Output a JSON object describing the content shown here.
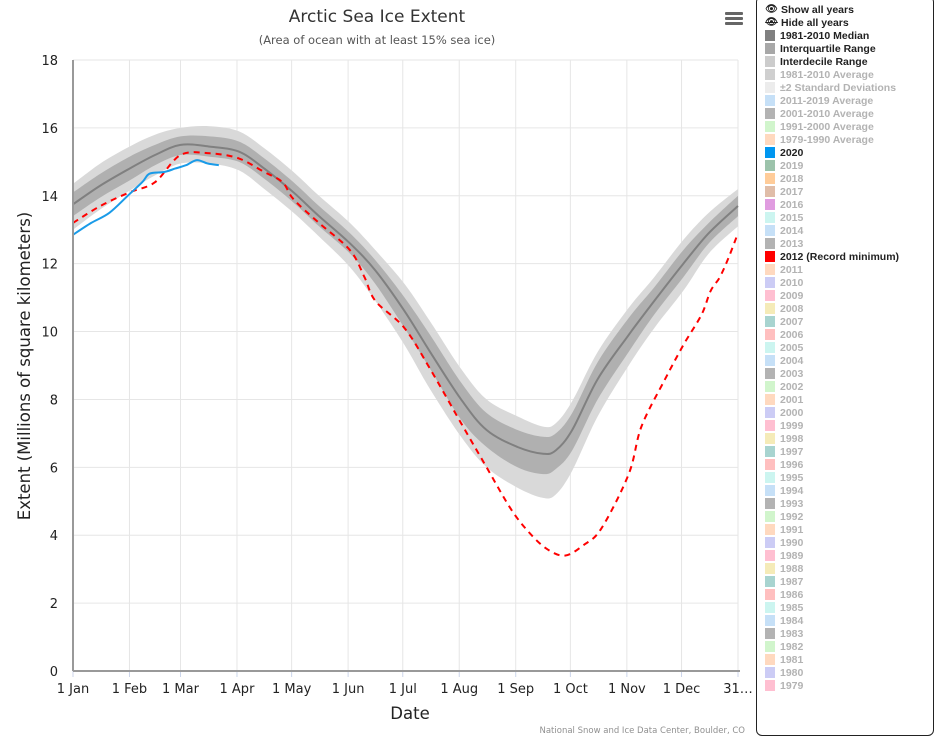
{
  "chart_data": {
    "type": "area",
    "title": "Arctic Sea Ice Extent",
    "subtitle": "(Area of ocean with at least 15% sea ice)",
    "xlabel": "Date",
    "ylabel": "Extent (Millions of square kilometers)",
    "credits": "National Snow and Ice Data Center, Boulder, CO",
    "ylim": [
      0,
      18
    ],
    "xlim_days": [
      0,
      365
    ],
    "yticks": [
      "0",
      "2",
      "4",
      "6",
      "8",
      "10",
      "12",
      "14",
      "16",
      "18"
    ],
    "xticks": [
      {
        "label": "1 Jan",
        "day": 0
      },
      {
        "label": "1 Feb",
        "day": 31
      },
      {
        "label": "1 Mar",
        "day": 59
      },
      {
        "label": "1 Apr",
        "day": 90
      },
      {
        "label": "1 May",
        "day": 120
      },
      {
        "label": "1 Jun",
        "day": 151
      },
      {
        "label": "1 Jul",
        "day": 181
      },
      {
        "label": "1 Aug",
        "day": 212
      },
      {
        "label": "1 Sep",
        "day": 243
      },
      {
        "label": "1 Oct",
        "day": 273
      },
      {
        "label": "1 Nov",
        "day": 304
      },
      {
        "label": "1 Dec",
        "day": 334
      },
      {
        "label": "31…",
        "day": 365
      }
    ],
    "grid": true,
    "series": [
      {
        "name": "1981-2010 Median",
        "kind": "line",
        "color": "#808080",
        "x": [
          0,
          15,
          31,
          45,
          59,
          75,
          91,
          105,
          121,
          135,
          152,
          166,
          182,
          196,
          213,
          227,
          244,
          258,
          265,
          274,
          288,
          305,
          319,
          335,
          349,
          365
        ],
        "values": [
          13.75,
          14.3,
          14.8,
          15.2,
          15.5,
          15.45,
          15.3,
          14.8,
          14.1,
          13.4,
          12.6,
          11.8,
          10.6,
          9.4,
          8.0,
          7.1,
          6.6,
          6.4,
          6.5,
          7.1,
          8.6,
          9.9,
          10.9,
          12.0,
          12.9,
          13.7
        ]
      },
      {
        "name": "Interquartile Range",
        "kind": "band",
        "color": "#b0b0b0",
        "x": [
          0,
          15,
          31,
          45,
          59,
          75,
          91,
          105,
          121,
          135,
          152,
          166,
          182,
          196,
          213,
          227,
          244,
          258,
          265,
          274,
          288,
          305,
          319,
          335,
          349,
          365
        ],
        "low": [
          13.4,
          13.95,
          14.45,
          14.9,
          15.2,
          15.15,
          15.0,
          14.5,
          13.8,
          13.1,
          12.3,
          11.4,
          10.1,
          8.9,
          7.4,
          6.6,
          6.0,
          5.8,
          5.95,
          6.5,
          8.0,
          9.4,
          10.5,
          11.6,
          12.6,
          13.4
        ],
        "high": [
          14.1,
          14.65,
          15.15,
          15.5,
          15.75,
          15.75,
          15.6,
          15.1,
          14.4,
          13.7,
          12.9,
          12.1,
          11.0,
          9.9,
          8.5,
          7.6,
          7.1,
          6.9,
          7.0,
          7.6,
          9.1,
          10.4,
          11.3,
          12.4,
          13.2,
          14.0
        ]
      },
      {
        "name": "Interdecile Range",
        "kind": "band",
        "color": "#d9d9d9",
        "x": [
          0,
          15,
          31,
          45,
          59,
          75,
          91,
          105,
          121,
          135,
          152,
          166,
          182,
          196,
          213,
          227,
          244,
          258,
          265,
          274,
          288,
          305,
          319,
          335,
          349,
          365
        ],
        "low": [
          13.0,
          13.6,
          14.15,
          14.6,
          14.95,
          14.95,
          14.75,
          14.2,
          13.5,
          12.8,
          11.9,
          10.9,
          9.6,
          8.3,
          6.9,
          6.0,
          5.4,
          5.1,
          5.2,
          5.9,
          7.5,
          9.0,
          10.1,
          11.2,
          12.3,
          13.1
        ],
        "high": [
          14.35,
          14.95,
          15.45,
          15.8,
          16.0,
          16.05,
          15.9,
          15.4,
          14.7,
          14.0,
          13.2,
          12.4,
          11.4,
          10.3,
          8.9,
          8.0,
          7.5,
          7.2,
          7.3,
          7.95,
          9.4,
          10.7,
          11.6,
          12.7,
          13.5,
          14.2
        ]
      },
      {
        "name": "2012 (Record minimum)",
        "kind": "dashed",
        "color": "#ff0000",
        "x": [
          0,
          15,
          31,
          45,
          59,
          75,
          91,
          105,
          115,
          121,
          135,
          152,
          160,
          166,
          182,
          196,
          213,
          227,
          240,
          250,
          260,
          270,
          280,
          290,
          305,
          312,
          325,
          335,
          345,
          350,
          355,
          360,
          365
        ],
        "values": [
          13.2,
          13.7,
          14.1,
          14.4,
          15.2,
          15.25,
          15.1,
          14.7,
          14.4,
          13.9,
          13.2,
          12.4,
          11.6,
          10.9,
          10.1,
          8.9,
          7.3,
          6.0,
          4.8,
          4.1,
          3.6,
          3.4,
          3.7,
          4.2,
          5.8,
          7.2,
          8.6,
          9.6,
          10.5,
          11.2,
          11.6,
          12.2,
          12.9
        ]
      },
      {
        "name": "2020",
        "kind": "line",
        "color": "#1a9be8",
        "x": [
          0,
          10,
          20,
          30,
          38,
          42,
          50,
          56,
          62,
          68,
          74,
          80
        ],
        "values": [
          12.85,
          13.2,
          13.5,
          14.0,
          14.4,
          14.65,
          14.7,
          14.8,
          14.9,
          15.05,
          14.95,
          14.9
        ]
      }
    ]
  },
  "menu": {
    "icon": "hamburger-menu-icon"
  },
  "legend": {
    "controls": [
      {
        "label": "Show all years",
        "icon": "eye-icon"
      },
      {
        "label": "Hide all years",
        "icon": "eye-slash-icon"
      }
    ],
    "items": [
      {
        "label": "1981-2010 Median",
        "color": "#808080",
        "on": true
      },
      {
        "label": "Interquartile Range",
        "color": "#a8a8a8",
        "on": true
      },
      {
        "label": "Interdecile Range",
        "color": "#cccccc",
        "on": true
      },
      {
        "label": "1981-2010 Average",
        "color": "#cfcfcf",
        "on": false
      },
      {
        "label": "±2 Standard Deviations",
        "color": "#ececec",
        "on": false
      },
      {
        "label": "2011-2019 Average",
        "color": "#c6e0f7",
        "on": false
      },
      {
        "label": "2001-2010 Average",
        "color": "#b3b3b3",
        "on": false
      },
      {
        "label": "1991-2000 Average",
        "color": "#d1f5cc",
        "on": false
      },
      {
        "label": "1979-1990 Average",
        "color": "#ffd9bf",
        "on": false
      },
      {
        "label": "2020",
        "color": "#0096f0",
        "on": true
      },
      {
        "label": "2019",
        "color": "#9cc3ab",
        "on": false
      },
      {
        "label": "2018",
        "color": "#ffcc99",
        "on": false
      },
      {
        "label": "2017",
        "color": "#e0bda8",
        "on": false
      },
      {
        "label": "2016",
        "color": "#e09ce0",
        "on": false
      },
      {
        "label": "2015",
        "color": "#ccf5f0",
        "on": false
      },
      {
        "label": "2014",
        "color": "#c6e0f7",
        "on": false
      },
      {
        "label": "2013",
        "color": "#b3b3b3",
        "on": false
      },
      {
        "label": "2012 (Record minimum)",
        "color": "#ff0000",
        "on": true
      },
      {
        "label": "2011",
        "color": "#ffd9bf",
        "on": false
      },
      {
        "label": "2010",
        "color": "#ccccf5",
        "on": false
      },
      {
        "label": "2009",
        "color": "#ffbfd1",
        "on": false
      },
      {
        "label": "2008",
        "color": "#f5ebb8",
        "on": false
      },
      {
        "label": "2007",
        "color": "#a8d4d0",
        "on": false
      },
      {
        "label": "2006",
        "color": "#ffbfbf",
        "on": false
      },
      {
        "label": "2005",
        "color": "#ccf5f0",
        "on": false
      },
      {
        "label": "2004",
        "color": "#c6e0f7",
        "on": false
      },
      {
        "label": "2003",
        "color": "#b3b3b3",
        "on": false
      },
      {
        "label": "2002",
        "color": "#d1f5cc",
        "on": false
      },
      {
        "label": "2001",
        "color": "#ffd9bf",
        "on": false
      },
      {
        "label": "2000",
        "color": "#ccccf5",
        "on": false
      },
      {
        "label": "1999",
        "color": "#ffbfd1",
        "on": false
      },
      {
        "label": "1998",
        "color": "#f5ebb8",
        "on": false
      },
      {
        "label": "1997",
        "color": "#a8d4d0",
        "on": false
      },
      {
        "label": "1996",
        "color": "#ffbfbf",
        "on": false
      },
      {
        "label": "1995",
        "color": "#ccf5f0",
        "on": false
      },
      {
        "label": "1994",
        "color": "#c6e0f7",
        "on": false
      },
      {
        "label": "1993",
        "color": "#b3b3b3",
        "on": false
      },
      {
        "label": "1992",
        "color": "#d1f5cc",
        "on": false
      },
      {
        "label": "1991",
        "color": "#ffd9bf",
        "on": false
      },
      {
        "label": "1990",
        "color": "#ccccf5",
        "on": false
      },
      {
        "label": "1989",
        "color": "#ffbfd1",
        "on": false
      },
      {
        "label": "1988",
        "color": "#f5ebb8",
        "on": false
      },
      {
        "label": "1987",
        "color": "#a8d4d0",
        "on": false
      },
      {
        "label": "1986",
        "color": "#ffbfbf",
        "on": false
      },
      {
        "label": "1985",
        "color": "#ccf5f0",
        "on": false
      },
      {
        "label": "1984",
        "color": "#c6e0f7",
        "on": false
      },
      {
        "label": "1983",
        "color": "#b3b3b3",
        "on": false
      },
      {
        "label": "1982",
        "color": "#d1f5cc",
        "on": false
      },
      {
        "label": "1981",
        "color": "#ffd9bf",
        "on": false
      },
      {
        "label": "1980",
        "color": "#ccccf5",
        "on": false
      },
      {
        "label": "1979",
        "color": "#ffbfd1",
        "on": false
      }
    ]
  }
}
